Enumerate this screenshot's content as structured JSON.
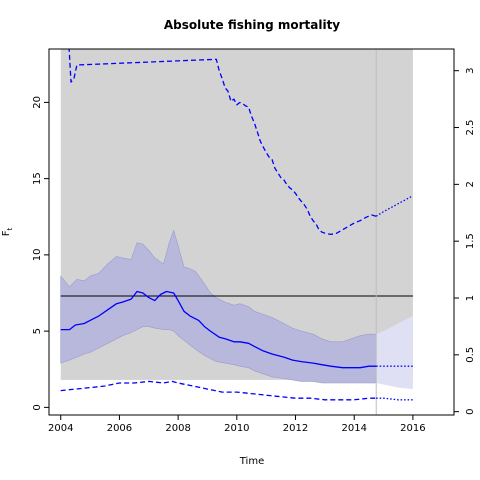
{
  "chart_data": {
    "type": "line",
    "title": "Absolute fishing mortality",
    "xlabel": "Time",
    "ylabel": "F",
    "ylabel_subscript": "t",
    "xlim": [
      2003.6,
      2017.4
    ],
    "ylim": [
      -0.5,
      23.5
    ],
    "ylim_right": [
      -0.0294,
      3.191
    ],
    "x_ticks": [
      2004,
      2006,
      2008,
      2010,
      2012,
      2014,
      2016
    ],
    "y_ticks": [
      0,
      5,
      10,
      15,
      20
    ],
    "y_ticks_right": [
      0,
      0.5,
      1,
      1.5,
      2,
      2.5,
      3
    ],
    "y_tick_labels_right": [
      "0",
      "0.5",
      "1",
      "1.5",
      "2",
      "2.5",
      "3"
    ],
    "grid": false,
    "shaded_region": {
      "x": [
        2004,
        2016
      ],
      "y": [
        1.8,
        23.5
      ],
      "color": "#d3d3d3"
    },
    "reference_line": {
      "y": 7.3,
      "color": "#000000"
    },
    "vertical_line": {
      "x": 2014.75,
      "color": "#bebebe"
    },
    "colors": {
      "line": "#0000ff",
      "band": "#b8b8dc",
      "band_edge": "#9a9acd",
      "forecast_band": "#e0e0f4"
    },
    "ci_band": {
      "x": [
        2004.0,
        2004.3,
        2004.55,
        2004.8,
        2005.0,
        2005.3,
        2005.6,
        2005.9,
        2006.1,
        2006.4,
        2006.6,
        2006.8,
        2007.0,
        2007.2,
        2007.5,
        2007.7,
        2007.85,
        2008.0,
        2008.2,
        2008.4,
        2008.6,
        2008.9,
        2009.1,
        2009.3,
        2009.6,
        2009.9,
        2010.1,
        2010.4,
        2010.6,
        2010.9,
        2011.2,
        2011.6,
        2011.9,
        2012.2,
        2012.6,
        2012.9,
        2013.2,
        2013.6,
        2013.9,
        2014.2,
        2014.5,
        2014.75
      ],
      "upper": [
        8.6,
        7.9,
        8.4,
        8.3,
        8.6,
        8.8,
        9.4,
        9.9,
        9.8,
        9.7,
        10.8,
        10.7,
        10.3,
        9.8,
        9.4,
        10.8,
        11.6,
        10.6,
        9.2,
        9.1,
        8.9,
        8.1,
        7.5,
        7.2,
        6.9,
        6.7,
        6.8,
        6.6,
        6.3,
        6.1,
        5.9,
        5.5,
        5.2,
        5.0,
        4.8,
        4.5,
        4.3,
        4.3,
        4.5,
        4.7,
        4.8,
        4.8
      ],
      "lower": [
        2.9,
        3.1,
        3.3,
        3.5,
        3.6,
        3.9,
        4.2,
        4.5,
        4.7,
        4.9,
        5.1,
        5.3,
        5.3,
        5.2,
        5.1,
        5.1,
        5.0,
        4.7,
        4.4,
        4.1,
        3.8,
        3.4,
        3.2,
        3.0,
        2.9,
        2.8,
        2.7,
        2.6,
        2.4,
        2.2,
        2.0,
        1.9,
        1.8,
        1.7,
        1.7,
        1.6,
        1.6,
        1.6,
        1.6,
        1.6,
        1.6,
        1.6
      ]
    },
    "forecast_band": {
      "x": [
        2014.75,
        2015.0,
        2015.5,
        2016.0
      ],
      "upper": [
        4.8,
        5.0,
        5.5,
        6.0
      ],
      "lower": [
        1.6,
        1.5,
        1.3,
        1.2
      ]
    },
    "series": [
      {
        "style": "solid",
        "axis": "left",
        "x": [
          2004.0,
          2004.3,
          2004.5,
          2004.8,
          2005.0,
          2005.3,
          2005.6,
          2005.9,
          2006.1,
          2006.4,
          2006.6,
          2006.8,
          2007.0,
          2007.2,
          2007.4,
          2007.6,
          2007.85,
          2008.0,
          2008.2,
          2008.4,
          2008.7,
          2008.9,
          2009.1,
          2009.4,
          2009.6,
          2009.9,
          2010.1,
          2010.4,
          2010.6,
          2010.9,
          2011.2,
          2011.6,
          2011.9,
          2012.2,
          2012.6,
          2012.9,
          2013.2,
          2013.6,
          2013.9,
          2014.2,
          2014.5,
          2014.75
        ],
        "y": [
          5.1,
          5.1,
          5.4,
          5.5,
          5.7,
          6.0,
          6.4,
          6.8,
          6.9,
          7.1,
          7.6,
          7.5,
          7.2,
          7.0,
          7.4,
          7.6,
          7.5,
          7.0,
          6.3,
          6.0,
          5.7,
          5.3,
          5.0,
          4.6,
          4.5,
          4.3,
          4.3,
          4.2,
          4.0,
          3.7,
          3.5,
          3.3,
          3.1,
          3.0,
          2.9,
          2.8,
          2.7,
          2.6,
          2.6,
          2.6,
          2.7,
          2.7
        ]
      },
      {
        "style": "dotted",
        "axis": "left",
        "x": [
          2014.75,
          2015.0,
          2015.5,
          2016.0
        ],
        "y": [
          2.7,
          2.7,
          2.7,
          2.7
        ]
      },
      {
        "style": "dashed",
        "axis": "left",
        "x": [
          2004.0,
          2004.5,
          2005.0,
          2005.5,
          2006.0,
          2006.5,
          2007.0,
          2007.5,
          2007.8,
          2008.0,
          2008.5,
          2009.0,
          2009.5,
          2010.0,
          2010.5,
          2011.0,
          2011.5,
          2012.0,
          2012.5,
          2013.0,
          2013.5,
          2014.0,
          2014.5,
          2014.75
        ],
        "y": [
          1.1,
          1.2,
          1.3,
          1.4,
          1.6,
          1.6,
          1.7,
          1.6,
          1.7,
          1.6,
          1.4,
          1.2,
          1.0,
          1.0,
          0.9,
          0.8,
          0.7,
          0.6,
          0.6,
          0.5,
          0.5,
          0.5,
          0.6,
          0.6
        ]
      },
      {
        "style": "dotted",
        "axis": "left",
        "x": [
          2014.75,
          2015.0,
          2015.5,
          2016.0
        ],
        "y": [
          0.6,
          0.6,
          0.5,
          0.5
        ]
      },
      {
        "style": "dashed",
        "axis": "right",
        "x": [
          2004.25,
          2004.35,
          2004.45,
          2004.55,
          2009.3,
          2009.4,
          2009.5,
          2009.6,
          2009.7,
          2009.8,
          2009.9,
          2010.0,
          2010.1,
          2010.2,
          2010.3,
          2010.4,
          2010.5,
          2010.6,
          2010.7,
          2010.8,
          2010.9,
          2011.0,
          2011.1,
          2011.2,
          2011.3,
          2011.4,
          2011.5,
          2011.6,
          2011.7,
          2011.8,
          2011.9,
          2012.0,
          2012.1,
          2012.2,
          2012.3,
          2012.4,
          2012.5,
          2012.6,
          2012.7,
          2012.8,
          2012.9,
          2013.0,
          2013.2,
          2013.4,
          2013.6,
          2013.8,
          2014.0,
          2014.2,
          2014.4,
          2014.6,
          2014.75
        ],
        "y": [
          3.35,
          2.9,
          2.93,
          3.05,
          3.1,
          3.0,
          2.93,
          2.85,
          2.82,
          2.73,
          2.75,
          2.7,
          2.72,
          2.71,
          2.69,
          2.68,
          2.6,
          2.54,
          2.46,
          2.38,
          2.33,
          2.28,
          2.24,
          2.22,
          2.14,
          2.1,
          2.06,
          2.04,
          2.0,
          1.97,
          1.95,
          1.92,
          1.88,
          1.85,
          1.82,
          1.78,
          1.72,
          1.68,
          1.65,
          1.6,
          1.58,
          1.57,
          1.56,
          1.57,
          1.6,
          1.63,
          1.66,
          1.68,
          1.71,
          1.73,
          1.72
        ]
      },
      {
        "style": "dotted",
        "axis": "right",
        "x": [
          2014.75,
          2015.0,
          2015.5,
          2016.0
        ],
        "y": [
          1.72,
          1.76,
          1.83,
          1.9
        ]
      }
    ]
  }
}
